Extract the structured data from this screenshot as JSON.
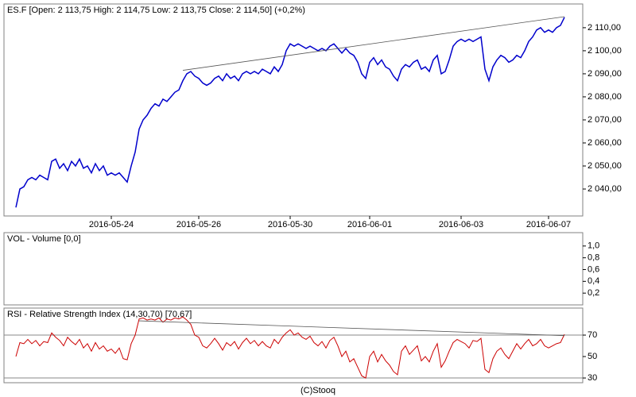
{
  "chart_data": [
    {
      "type": "line",
      "title": "ES.F [Open: 2 113,75  High: 2 114,75  Low: 2 113,75  Close: 2 114,50] (+0,2%)",
      "categories": [
        null,
        null,
        null,
        null,
        null,
        null,
        null,
        null,
        null,
        null,
        null,
        null,
        null,
        null,
        null,
        null,
        null,
        null,
        null,
        null,
        null,
        null,
        null,
        null,
        "2016-05-24",
        null,
        null,
        null,
        null,
        null,
        null,
        null,
        null,
        null,
        null,
        null,
        null,
        null,
        null,
        null,
        null,
        null,
        null,
        null,
        null,
        null,
        "2016-05-26",
        null,
        null,
        null,
        null,
        null,
        null,
        null,
        null,
        null,
        null,
        null,
        null,
        null,
        null,
        null,
        null,
        null,
        null,
        null,
        null,
        null,
        null,
        "2016-05-30",
        null,
        null,
        null,
        null,
        null,
        null,
        null,
        null,
        null,
        null,
        null,
        null,
        null,
        null,
        null,
        null,
        null,
        null,
        null,
        "2016-06-01",
        null,
        null,
        null,
        null,
        null,
        null,
        null,
        null,
        null,
        null,
        null,
        null,
        null,
        null,
        null,
        null,
        null,
        null,
        null,
        null,
        null,
        null,
        "2016-06-03",
        null,
        null,
        null,
        null,
        null,
        null,
        null,
        null,
        null,
        null,
        null,
        null,
        null,
        null,
        null,
        null,
        null,
        null,
        null,
        null,
        null,
        "2016-06-07",
        null,
        null,
        null,
        null
      ],
      "values": [
        2032,
        2040,
        2041,
        2044,
        2045,
        2044,
        2046,
        2045,
        2044,
        2052,
        2053,
        2049,
        2051,
        2048,
        2052,
        2050,
        2053,
        2049,
        2050,
        2047,
        2051,
        2048,
        2050,
        2046,
        2047,
        2046,
        2047,
        2045,
        2043,
        2050,
        2056,
        2066,
        2070,
        2072,
        2075,
        2077,
        2076,
        2079,
        2078,
        2080,
        2082,
        2083,
        2087,
        2090,
        2091,
        2089,
        2088,
        2086,
        2085,
        2086,
        2088,
        2089,
        2087,
        2090,
        2088,
        2089,
        2087,
        2090,
        2091,
        2090,
        2091,
        2090,
        2092,
        2091,
        2090,
        2093,
        2091,
        2094,
        2100,
        2103,
        2102,
        2103,
        2102,
        2101,
        2102,
        2101,
        2100,
        2101,
        2100,
        2102,
        2103,
        2101,
        2099,
        2101,
        2099,
        2098,
        2095,
        2090,
        2088,
        2095,
        2097,
        2094,
        2096,
        2093,
        2092,
        2089,
        2087,
        2092,
        2094,
        2093,
        2095,
        2096,
        2092,
        2093,
        2091,
        2096,
        2098,
        2090,
        2091,
        2096,
        2102,
        2104,
        2105,
        2104,
        2105,
        2104,
        2105,
        2106,
        2092,
        2087,
        2093,
        2096,
        2098,
        2097,
        2095,
        2096,
        2098,
        2097,
        2100,
        2104,
        2106,
        2109,
        2110,
        2108,
        2109,
        2108,
        2110,
        2111,
        2114.5
      ],
      "color": "#0000cc",
      "trendline": {
        "x": [
          42,
          138
        ],
        "values": [
          2091.5,
          2114.8
        ],
        "color": "#555555"
      },
      "ylim": [
        2028.3,
        2120.3
      ],
      "yticks": [
        {
          "value": 2040,
          "label": "2 040,00"
        },
        {
          "value": 2050,
          "label": "2 050,00"
        },
        {
          "value": 2060,
          "label": "2 060,00"
        },
        {
          "value": 2070,
          "label": "2 070,00"
        },
        {
          "value": 2080,
          "label": "2 080,00"
        },
        {
          "value": 2090,
          "label": "2 090,00"
        },
        {
          "value": 2100,
          "label": "2 100,00"
        },
        {
          "value": 2110,
          "label": "2 110,00"
        }
      ]
    },
    {
      "type": "bar",
      "title": "VOL - Volume [0,0]",
      "values": [],
      "ylim": [
        0,
        1.227
      ],
      "yticks": [
        {
          "value": 0.2,
          "label": "0,2"
        },
        {
          "value": 0.4,
          "label": "0,4"
        },
        {
          "value": 0.6,
          "label": "0,6"
        },
        {
          "value": 0.8,
          "label": "0,8"
        },
        {
          "value": 1,
          "label": "1,0"
        }
      ]
    },
    {
      "type": "line",
      "title": "RSI - Relative Strength Index (14,30,70) [70,67]",
      "values": [
        50,
        63,
        62,
        66,
        62,
        65,
        60,
        64,
        63,
        72,
        68,
        65,
        60,
        68,
        64,
        61,
        66,
        58,
        62,
        55,
        63,
        57,
        60,
        55,
        57,
        53,
        58,
        48,
        47,
        62,
        70,
        85,
        86,
        84,
        85,
        84,
        86,
        82,
        85,
        84,
        86,
        85,
        87,
        84,
        80,
        70,
        68,
        60,
        58,
        62,
        67,
        62,
        56,
        63,
        60,
        64,
        57,
        63,
        67,
        62,
        65,
        60,
        64,
        60,
        58,
        66,
        62,
        68,
        72,
        75,
        70,
        72,
        68,
        66,
        69,
        63,
        60,
        64,
        58,
        65,
        68,
        60,
        50,
        55,
        45,
        48,
        40,
        32,
        30,
        50,
        55,
        45,
        52,
        46,
        42,
        36,
        33,
        55,
        60,
        52,
        56,
        60,
        46,
        50,
        45,
        55,
        62,
        40,
        46,
        55,
        63,
        66,
        64,
        62,
        58,
        65,
        64,
        67,
        38,
        35,
        48,
        55,
        58,
        52,
        48,
        55,
        62,
        57,
        62,
        66,
        60,
        62,
        66,
        60,
        58,
        60,
        62,
        63,
        70.67
      ],
      "color": "#cc0000",
      "levels": [
        30,
        70
      ],
      "trendline": {
        "x": [
          31,
          138
        ],
        "values": [
          83.3,
          69.5
        ],
        "color": "#555555"
      },
      "ylim": [
        25.6,
        95.2
      ],
      "yticks": [
        30,
        50,
        70
      ]
    }
  ],
  "footer": "(C)Stooq"
}
